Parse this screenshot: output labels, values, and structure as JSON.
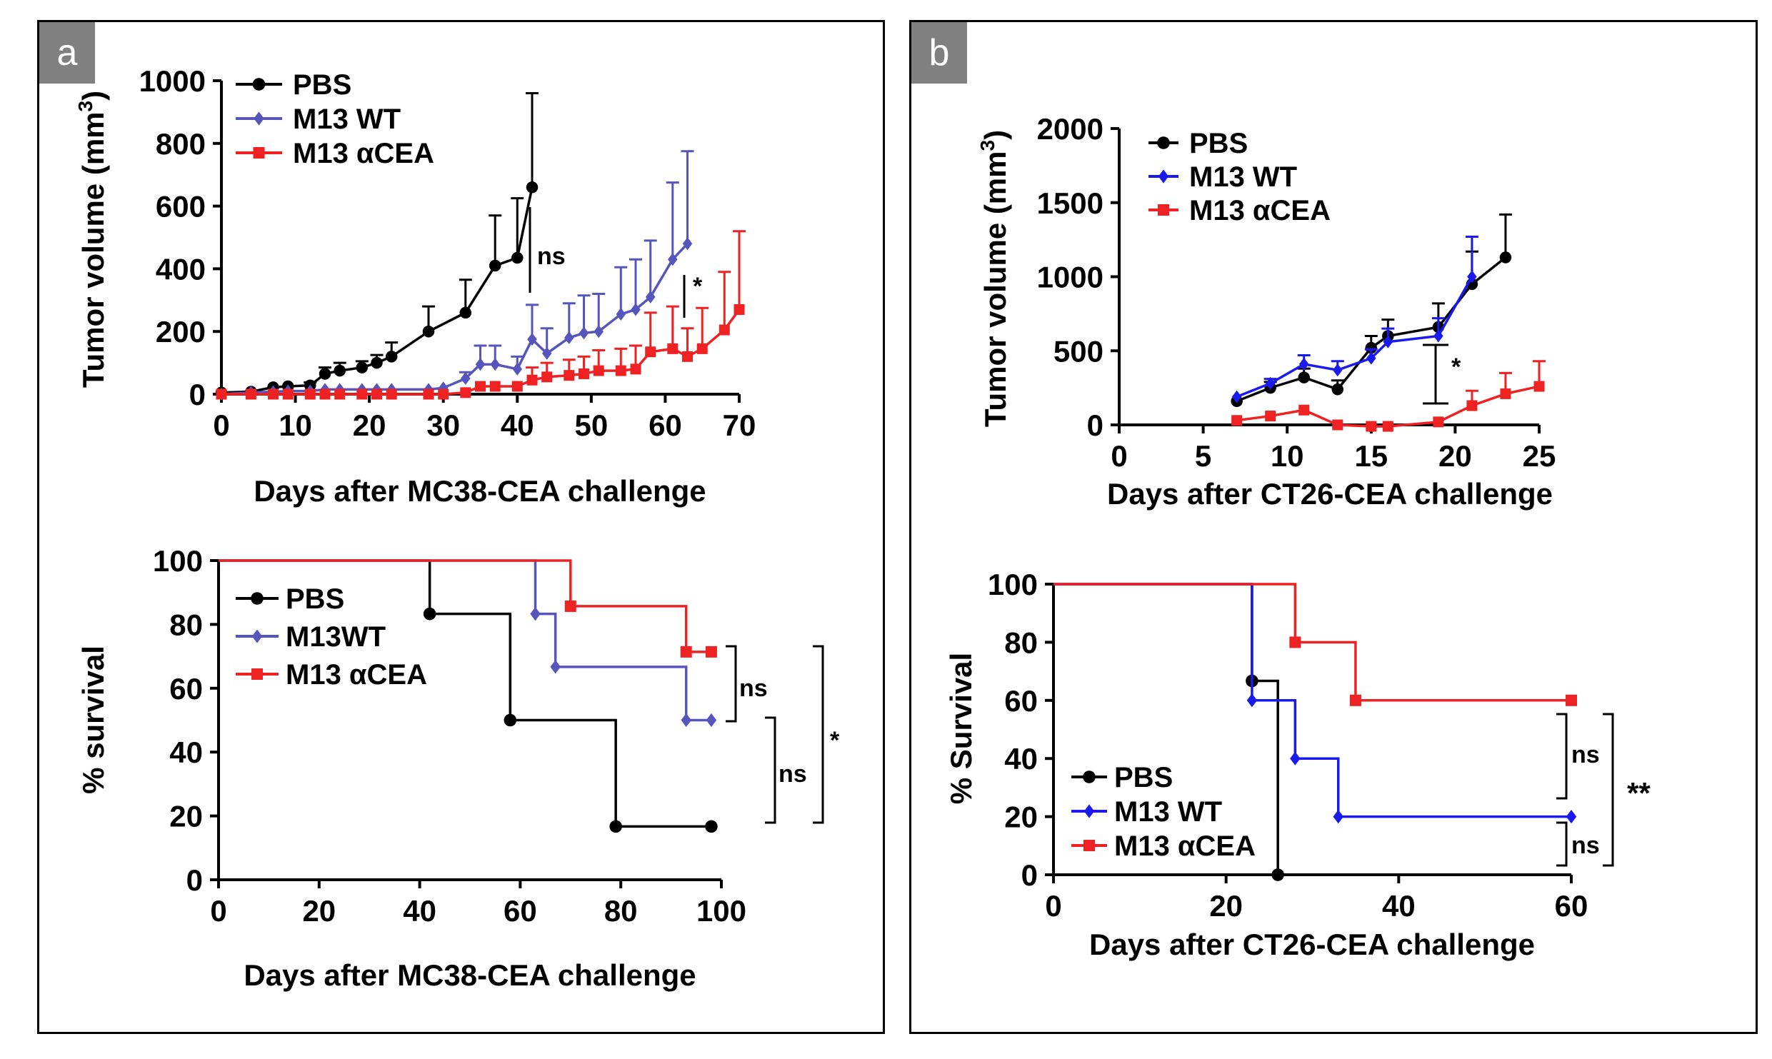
{
  "panels": {
    "a": "a",
    "b": "b"
  },
  "chart_data": [
    {
      "id": "a_top",
      "type": "line",
      "xlabel": "Days after MC38-CEA challenge",
      "ylabel_prefix": "Tumor volume (mm",
      "ylabel_sup": "3",
      "ylabel_suffix": ")",
      "xlim": [
        0,
        70
      ],
      "ylim": [
        0,
        1000
      ],
      "xticks": [
        0,
        10,
        20,
        30,
        40,
        50,
        60,
        70
      ],
      "yticks": [
        0,
        200,
        400,
        600,
        800,
        1000
      ],
      "series": [
        {
          "name": "PBS",
          "color": "#000000",
          "marker": "circle",
          "x": [
            0,
            4,
            7,
            9,
            12,
            14,
            16,
            19,
            21,
            23,
            28,
            33,
            37,
            40,
            42
          ],
          "y": [
            5,
            8,
            22,
            25,
            28,
            65,
            75,
            85,
            100,
            120,
            200,
            260,
            410,
            435,
            660
          ],
          "err": [
            0,
            0,
            0,
            0,
            10,
            20,
            25,
            20,
            25,
            45,
            80,
            105,
            160,
            190,
            300
          ]
        },
        {
          "name": "M13 WT",
          "color": "#5555bb",
          "marker": "diamond",
          "x": [
            0,
            4,
            7,
            9,
            12,
            14,
            16,
            19,
            21,
            23,
            28,
            30,
            33,
            35,
            37,
            40,
            42,
            44,
            47,
            49,
            51,
            54,
            56,
            58,
            61,
            63
          ],
          "y": [
            0,
            5,
            8,
            10,
            10,
            15,
            15,
            15,
            15,
            15,
            15,
            20,
            50,
            95,
            95,
            80,
            175,
            130,
            180,
            195,
            200,
            255,
            270,
            310,
            430,
            480
          ],
          "err": [
            0,
            0,
            0,
            0,
            0,
            0,
            0,
            0,
            0,
            0,
            0,
            0,
            20,
            60,
            60,
            40,
            110,
            80,
            110,
            120,
            120,
            150,
            160,
            180,
            245,
            295
          ]
        },
        {
          "name": "M13 αCEA",
          "color": "#ee2222",
          "marker": "square",
          "x": [
            0,
            4,
            7,
            9,
            12,
            14,
            16,
            19,
            21,
            23,
            28,
            30,
            33,
            35,
            37,
            40,
            42,
            44,
            47,
            49,
            51,
            54,
            56,
            58,
            61,
            63,
            65,
            68,
            70
          ],
          "y": [
            0,
            0,
            0,
            0,
            0,
            0,
            0,
            0,
            0,
            0,
            0,
            0,
            5,
            25,
            25,
            25,
            45,
            55,
            60,
            65,
            75,
            75,
            80,
            135,
            145,
            120,
            145,
            205,
            270
          ],
          "err": [
            0,
            0,
            0,
            0,
            0,
            0,
            0,
            0,
            0,
            0,
            0,
            0,
            0,
            0,
            0,
            0,
            40,
            45,
            50,
            55,
            65,
            70,
            75,
            125,
            135,
            90,
            130,
            185,
            250
          ]
        }
      ],
      "annotations": [
        {
          "text": "ns"
        },
        {
          "text": "*"
        }
      ]
    },
    {
      "id": "a_bottom",
      "type": "step",
      "xlabel": "Days after MC38-CEA challenge",
      "ylabel": "% survival",
      "xlim": [
        0,
        100
      ],
      "ylim": [
        0,
        100
      ],
      "xticks": [
        0,
        20,
        40,
        60,
        80,
        100
      ],
      "yticks": [
        0,
        20,
        40,
        60,
        80,
        100
      ],
      "series": [
        {
          "name": "PBS",
          "color": "#000000",
          "marker": "circle",
          "x": [
            0,
            42,
            58,
            79,
            98
          ],
          "y": [
            100,
            83.3,
            50,
            16.7,
            16.7
          ]
        },
        {
          "name": "M13WT",
          "color": "#5555bb",
          "marker": "diamond",
          "x": [
            0,
            63,
            67,
            93,
            98
          ],
          "y": [
            100,
            83.3,
            66.7,
            50,
            50
          ]
        },
        {
          "name": "M13 αCEA",
          "color": "#ee2222",
          "marker": "square",
          "x": [
            0,
            70,
            93,
            98
          ],
          "y": [
            100,
            85.7,
            71.4,
            71.4
          ]
        }
      ],
      "annotations": [
        {
          "text": "ns"
        },
        {
          "text": "ns"
        },
        {
          "text": "*"
        }
      ]
    },
    {
      "id": "b_top",
      "type": "line",
      "xlabel": "Days after CT26-CEA challenge",
      "ylabel_prefix": "Tumor volume (mm",
      "ylabel_sup": "3",
      "ylabel_suffix": ")",
      "xlim": [
        0,
        25
      ],
      "ylim": [
        0,
        2000
      ],
      "xticks": [
        0,
        5,
        10,
        15,
        20,
        25
      ],
      "yticks": [
        0,
        500,
        1000,
        1500,
        2000
      ],
      "series": [
        {
          "name": "PBS",
          "color": "#000000",
          "marker": "circle",
          "x": [
            7,
            9,
            11,
            13,
            15,
            16,
            19,
            21,
            23
          ],
          "y": [
            160,
            250,
            320,
            240,
            520,
            600,
            660,
            950,
            1130
          ],
          "err": [
            0,
            40,
            60,
            60,
            80,
            110,
            160,
            220,
            290
          ]
        },
        {
          "name": "M13 WT",
          "color": "#1a1aee",
          "marker": "diamond",
          "x": [
            7,
            9,
            11,
            13,
            15,
            16,
            19,
            21
          ],
          "y": [
            190,
            280,
            410,
            370,
            450,
            560,
            600,
            1000
          ],
          "err": [
            0,
            30,
            60,
            60,
            60,
            90,
            120,
            270
          ]
        },
        {
          "name": "M13 αCEA",
          "color": "#ee2222",
          "marker": "square",
          "x": [
            7,
            9,
            11,
            13,
            15,
            16,
            19,
            21,
            23,
            25
          ],
          "y": [
            30,
            60,
            100,
            0,
            -10,
            -10,
            20,
            130,
            210,
            260
          ],
          "err": [
            0,
            0,
            0,
            0,
            0,
            0,
            0,
            100,
            140,
            170
          ]
        }
      ],
      "annotations": [
        {
          "text": "*"
        }
      ]
    },
    {
      "id": "b_bottom",
      "type": "step",
      "xlabel": "Days after CT26-CEA challenge",
      "ylabel": "% Survival",
      "xlim": [
        0,
        60
      ],
      "ylim": [
        0,
        100
      ],
      "xticks": [
        0,
        20,
        40,
        60
      ],
      "yticks": [
        0,
        20,
        40,
        60,
        80,
        100
      ],
      "series": [
        {
          "name": "PBS",
          "color": "#000000",
          "marker": "circle",
          "x": [
            0,
            23,
            26
          ],
          "y": [
            100,
            66.7,
            0
          ]
        },
        {
          "name": "M13 WT",
          "color": "#1a1aee",
          "marker": "diamond",
          "x": [
            0,
            23,
            28,
            33,
            60
          ],
          "y": [
            100,
            60,
            40,
            20,
            20
          ]
        },
        {
          "name": "M13 αCEA",
          "color": "#ee2222",
          "marker": "square",
          "x": [
            0,
            28,
            35,
            60
          ],
          "y": [
            100,
            80,
            60,
            60
          ]
        }
      ],
      "annotations": [
        {
          "text": "ns"
        },
        {
          "text": "ns"
        },
        {
          "text": "**"
        }
      ]
    }
  ]
}
